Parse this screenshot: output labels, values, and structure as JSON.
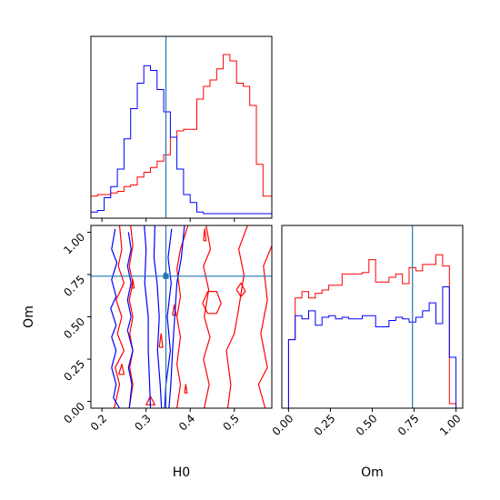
{
  "colors": {
    "series_red": "#ff0000",
    "series_blue": "#0000ff",
    "truth": "#1f77b4",
    "frame": "#000000",
    "background": "#ffffff"
  },
  "chart_data": [
    {
      "type": "histogram",
      "panel": "H0 marginal",
      "xlim": [
        0.175,
        0.585
      ],
      "xticks": [
        0.2,
        0.3,
        0.4,
        0.5
      ],
      "truth_x": 0.345,
      "series": [
        {
          "color": "red",
          "bins": [
            0.175,
            0.19,
            0.205,
            0.22,
            0.235,
            0.25,
            0.265,
            0.28,
            0.295,
            0.31,
            0.325,
            0.34,
            0.355,
            0.37,
            0.385,
            0.4,
            0.415,
            0.43,
            0.445,
            0.46,
            0.475,
            0.49,
            0.505,
            0.52,
            0.535,
            0.55,
            0.565,
            0.585
          ],
          "values": [
            0.11,
            0.12,
            0.12,
            0.13,
            0.14,
            0.17,
            0.18,
            0.23,
            0.26,
            0.29,
            0.33,
            0.37,
            0.48,
            0.52,
            0.53,
            0.53,
            0.72,
            0.8,
            0.84,
            0.91,
            1.0,
            0.96,
            0.82,
            0.8,
            0.68,
            0.31,
            0.11
          ]
        },
        {
          "color": "blue",
          "bins": [
            0.175,
            0.19,
            0.205,
            0.22,
            0.235,
            0.25,
            0.265,
            0.28,
            0.295,
            0.31,
            0.325,
            0.34,
            0.355,
            0.37,
            0.385,
            0.4,
            0.415,
            0.43,
            0.445,
            0.46,
            0.475,
            0.49,
            0.505,
            0.52,
            0.535,
            0.55,
            0.565,
            0.585
          ],
          "values": [
            0.01,
            0.02,
            0.1,
            0.17,
            0.28,
            0.47,
            0.66,
            0.82,
            0.93,
            0.9,
            0.78,
            0.64,
            0.48,
            0.28,
            0.12,
            0.07,
            0.01,
            0,
            0,
            0,
            0,
            0,
            0,
            0,
            0,
            0,
            0
          ]
        }
      ]
    },
    {
      "type": "histogram",
      "panel": "Om marginal",
      "xlabel": "Om",
      "xlim": [
        -0.04,
        1.04
      ],
      "xticks": [
        0.0,
        0.25,
        0.5,
        0.75,
        1.0
      ],
      "tick_labels": [
        "0.00",
        "0.25",
        "0.50",
        "0.75",
        "1.00"
      ],
      "truth_x": 0.74,
      "series": [
        {
          "color": "red",
          "bins": [
            0.0,
            0.04,
            0.08,
            0.12,
            0.16,
            0.2,
            0.24,
            0.28,
            0.32,
            0.36,
            0.4,
            0.44,
            0.48,
            0.52,
            0.56,
            0.6,
            0.64,
            0.68,
            0.72,
            0.76,
            0.8,
            0.84,
            0.88,
            0.92,
            0.96,
            1.0
          ],
          "values": [
            0.4,
            0.66,
            0.7,
            0.66,
            0.69,
            0.71,
            0.74,
            0.74,
            0.81,
            0.81,
            0.81,
            0.82,
            0.9,
            0.76,
            0.76,
            0.79,
            0.81,
            0.75,
            0.85,
            0.83,
            0.87,
            0.87,
            0.93,
            0.86,
            0.0
          ]
        },
        {
          "color": "blue",
          "bins": [
            0.0,
            0.04,
            0.08,
            0.12,
            0.16,
            0.2,
            0.24,
            0.28,
            0.32,
            0.36,
            0.4,
            0.44,
            0.48,
            0.52,
            0.56,
            0.6,
            0.64,
            0.68,
            0.72,
            0.76,
            0.8,
            0.84,
            0.88,
            0.92,
            0.96,
            1.0
          ],
          "values": [
            0.4,
            0.55,
            0.53,
            0.58,
            0.49,
            0.54,
            0.55,
            0.53,
            0.54,
            0.53,
            0.53,
            0.55,
            0.55,
            0.48,
            0.48,
            0.52,
            0.54,
            0.53,
            0.51,
            0.54,
            0.58,
            0.63,
            0.5,
            0.73,
            0.29
          ]
        }
      ]
    },
    {
      "type": "contour",
      "panel": "H0 vs Om joint",
      "xlabel": "H0",
      "ylabel": "Om",
      "xlim": [
        0.175,
        0.585
      ],
      "ylim": [
        -0.04,
        1.04
      ],
      "xticks": [
        0.2,
        0.3,
        0.4,
        0.5
      ],
      "yticks": [
        0.0,
        0.25,
        0.5,
        0.75,
        1.0
      ],
      "ytick_labels": [
        "0.00",
        "0.25",
        "0.50",
        "0.75",
        "1.00"
      ],
      "truth": [
        0.345,
        0.74
      ],
      "series": [
        {
          "color": "red",
          "contours": [
            [
              [
                0.24,
                1.04
              ],
              [
                0.245,
                0.9
              ],
              [
                0.237,
                0.8
              ],
              [
                0.25,
                0.7
              ],
              [
                0.232,
                0.6
              ],
              [
                0.245,
                0.5
              ],
              [
                0.235,
                0.4
              ],
              [
                0.25,
                0.3
              ],
              [
                0.23,
                0.2
              ],
              [
                0.24,
                0.1
              ],
              [
                0.228,
                -0.04
              ]
            ],
            [
              [
                0.265,
                1.04
              ],
              [
                0.27,
                0.92
              ],
              [
                0.262,
                0.8
              ],
              [
                0.27,
                0.7
              ],
              [
                0.262,
                0.6
              ],
              [
                0.27,
                0.5
              ],
              [
                0.263,
                0.4
              ],
              [
                0.27,
                0.3
              ],
              [
                0.263,
                0.2
              ],
              [
                0.27,
                0.1
              ],
              [
                0.262,
                -0.04
              ]
            ],
            [
              [
                0.395,
                1.04
              ],
              [
                0.378,
                0.9
              ],
              [
                0.37,
                0.78
              ],
              [
                0.378,
                0.62
              ],
              [
                0.37,
                0.5
              ],
              [
                0.378,
                0.38
              ],
              [
                0.37,
                0.22
              ],
              [
                0.378,
                0.1
              ],
              [
                0.37,
                -0.04
              ]
            ],
            [
              [
                0.436,
                1.04
              ],
              [
                0.446,
                0.9
              ],
              [
                0.43,
                0.8
              ],
              [
                0.442,
                0.66
              ],
              [
                0.432,
                0.5
              ],
              [
                0.445,
                0.38
              ],
              [
                0.43,
                0.25
              ],
              [
                0.443,
                0.1
              ],
              [
                0.432,
                -0.04
              ]
            ],
            [
              [
                0.53,
                1.04
              ],
              [
                0.51,
                0.9
              ],
              [
                0.522,
                0.75
              ],
              [
                0.51,
                0.55
              ],
              [
                0.5,
                0.4
              ],
              [
                0.482,
                0.3
              ],
              [
                0.492,
                0.1
              ],
              [
                0.485,
                -0.04
              ]
            ],
            [
              [
                0.585,
                0.92
              ],
              [
                0.566,
                0.8
              ],
              [
                0.575,
                0.6
              ],
              [
                0.56,
                0.4
              ],
              [
                0.575,
                0.2
              ],
              [
                0.555,
                0.1
              ],
              [
                0.57,
                -0.04
              ]
            ],
            [
              [
                0.428,
                0.58
              ],
              [
                0.44,
                0.65
              ],
              [
                0.46,
                0.65
              ],
              [
                0.47,
                0.58
              ],
              [
                0.46,
                0.52
              ],
              [
                0.44,
                0.52
              ],
              [
                0.428,
                0.58
              ]
            ],
            [
              [
                0.505,
                0.66
              ],
              [
                0.515,
                0.7
              ],
              [
                0.525,
                0.65
              ],
              [
                0.515,
                0.62
              ],
              [
                0.505,
                0.66
              ]
            ],
            [
              [
                0.36,
                0.51
              ],
              [
                0.364,
                0.57
              ],
              [
                0.368,
                0.51
              ],
              [
                0.36,
                0.51
              ]
            ],
            [
              [
                0.33,
                0.32
              ],
              [
                0.334,
                0.4
              ],
              [
                0.338,
                0.32
              ],
              [
                0.33,
                0.32
              ]
            ],
            [
              [
                0.267,
                0.67
              ],
              [
                0.27,
                0.72
              ],
              [
                0.273,
                0.67
              ],
              [
                0.267,
                0.67
              ]
            ],
            [
              [
                0.387,
                0.05
              ],
              [
                0.39,
                0.1
              ],
              [
                0.393,
                0.05
              ],
              [
                0.387,
                0.05
              ]
            ],
            [
              [
                0.43,
                0.95
              ],
              [
                0.433,
                1.02
              ],
              [
                0.436,
                0.95
              ],
              [
                0.43,
                0.95
              ]
            ],
            [
              [
                0.238,
                0.16
              ],
              [
                0.245,
                0.22
              ],
              [
                0.25,
                0.16
              ],
              [
                0.238,
                0.16
              ]
            ],
            [
              [
                0.3,
                -0.02
              ],
              [
                0.31,
                0.03
              ],
              [
                0.32,
                -0.02
              ],
              [
                0.3,
                -0.02
              ]
            ]
          ]
        },
        {
          "color": "blue",
          "contours": [
            [
              [
                0.23,
                1.02
              ],
              [
                0.222,
                0.9
              ],
              [
                0.234,
                0.82
              ],
              [
                0.222,
                0.72
              ],
              [
                0.232,
                0.62
              ],
              [
                0.22,
                0.55
              ],
              [
                0.232,
                0.45
              ],
              [
                0.222,
                0.38
              ],
              [
                0.232,
                0.3
              ],
              [
                0.222,
                0.2
              ],
              [
                0.232,
                0.1
              ],
              [
                0.226,
                0.02
              ],
              [
                0.24,
                -0.04
              ]
            ],
            [
              [
                0.26,
                1.0
              ],
              [
                0.266,
                0.9
              ],
              [
                0.258,
                0.8
              ],
              [
                0.266,
                0.7
              ],
              [
                0.258,
                0.6
              ],
              [
                0.266,
                0.5
              ],
              [
                0.258,
                0.42
              ],
              [
                0.27,
                0.3
              ],
              [
                0.26,
                0.2
              ],
              [
                0.268,
                0.1
              ],
              [
                0.262,
                -0.04
              ]
            ],
            [
              [
                0.296,
                1.04
              ],
              [
                0.3,
                0.9
              ],
              [
                0.297,
                0.7
              ],
              [
                0.305,
                0.5
              ],
              [
                0.305,
                0.3
              ],
              [
                0.308,
                0.1
              ],
              [
                0.31,
                -0.04
              ]
            ],
            [
              [
                0.32,
                1.04
              ],
              [
                0.318,
                0.85
              ],
              [
                0.325,
                0.7
              ],
              [
                0.33,
                0.5
              ],
              [
                0.326,
                0.3
              ],
              [
                0.332,
                0.1
              ],
              [
                0.335,
                -0.04
              ]
            ],
            [
              [
                0.358,
                1.02
              ],
              [
                0.35,
                0.85
              ],
              [
                0.357,
                0.7
              ],
              [
                0.348,
                0.5
              ],
              [
                0.355,
                0.3
              ],
              [
                0.345,
                0.1
              ],
              [
                0.342,
                -0.04
              ]
            ],
            [
              [
                0.387,
                1.04
              ],
              [
                0.38,
                0.85
              ],
              [
                0.37,
                0.7
              ],
              [
                0.365,
                0.5
              ],
              [
                0.36,
                0.3
              ],
              [
                0.356,
                0.1
              ],
              [
                0.352,
                -0.04
              ]
            ],
            [
              [
                0.34,
                0.73
              ],
              [
                0.343,
                0.76
              ],
              [
                0.347,
                0.73
              ],
              [
                0.34,
                0.73
              ]
            ]
          ]
        }
      ]
    }
  ]
}
